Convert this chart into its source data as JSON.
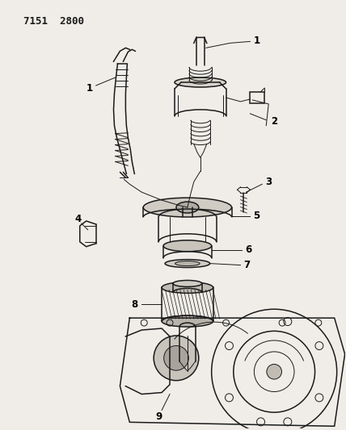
{
  "title": "7151  2800",
  "bg_color": "#f0ede8",
  "line_color": "#1a1a1a",
  "fig_width": 4.28,
  "fig_height": 5.33,
  "dpi": 100
}
